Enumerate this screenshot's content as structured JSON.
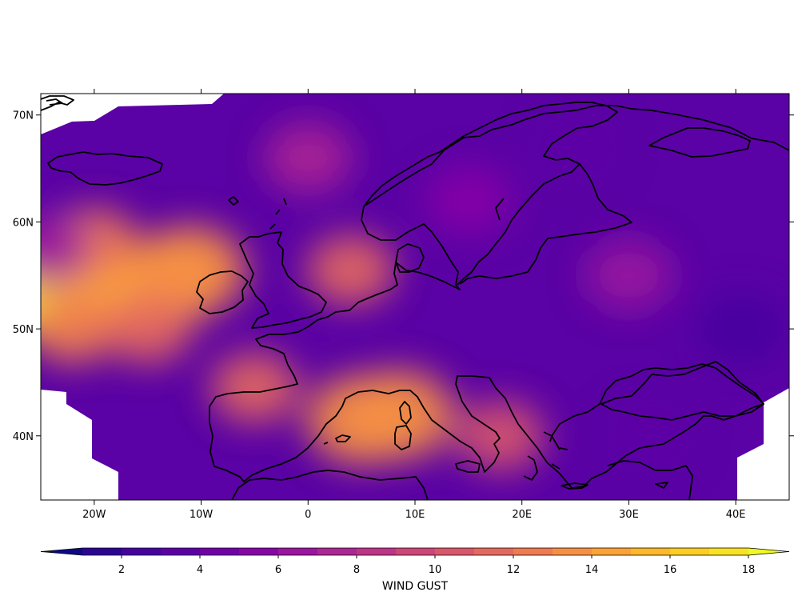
{
  "map": {
    "projection": "PlateCarree",
    "lon_range": [
      -25,
      45
    ],
    "lat_range": [
      34,
      72
    ],
    "x_ticks": [
      {
        "value": -20,
        "label": "20W"
      },
      {
        "value": -10,
        "label": "10W"
      },
      {
        "value": 0,
        "label": "0"
      },
      {
        "value": 10,
        "label": "10E"
      },
      {
        "value": 20,
        "label": "20E"
      },
      {
        "value": 30,
        "label": "30E"
      },
      {
        "value": 40,
        "label": "40E"
      }
    ],
    "y_ticks": [
      {
        "value": 40,
        "label": "40N"
      },
      {
        "value": 50,
        "label": "50N"
      },
      {
        "value": 60,
        "label": "60N"
      },
      {
        "value": 70,
        "label": "70N"
      }
    ],
    "colormap": "plasma",
    "field": "wind gust (filled contours)"
  },
  "colorbar": {
    "label": "WIND GUST",
    "levels": [
      1,
      2,
      3,
      4,
      5,
      6,
      7,
      8,
      9,
      10,
      11,
      12,
      13,
      14,
      15,
      16,
      17,
      18
    ],
    "extend": "both",
    "ticks": [
      {
        "value": 2,
        "label": "2"
      },
      {
        "value": 4,
        "label": "4"
      },
      {
        "value": 6,
        "label": "6"
      },
      {
        "value": 8,
        "label": "8"
      },
      {
        "value": 10,
        "label": "10"
      },
      {
        "value": 12,
        "label": "12"
      },
      {
        "value": 14,
        "label": "14"
      },
      {
        "value": 16,
        "label": "16"
      },
      {
        "value": 18,
        "label": "18"
      }
    ],
    "colors": [
      "#0d0887",
      "#2d0594",
      "#46039f",
      "#5c01a6",
      "#7201a8",
      "#8606a6",
      "#9a169f",
      "#ac2694",
      "#bc3587",
      "#cc4778",
      "#d8576b",
      "#e4695e",
      "#ee7b51",
      "#f68f44",
      "#fca338",
      "#feb82c",
      "#fccd25",
      "#f7e225",
      "#f0f921"
    ]
  },
  "hotspots": [
    {
      "lon": -24.5,
      "lat": 53.2,
      "value": 17.5
    },
    {
      "lon": -22,
      "lat": 53.5,
      "value": 16
    },
    {
      "lon": -18,
      "lat": 53.5,
      "value": 14.5
    },
    {
      "lon": -13,
      "lat": 54.5,
      "value": 14
    },
    {
      "lon": -11,
      "lat": 55.5,
      "value": 13.5
    },
    {
      "lon": -20,
      "lat": 58,
      "value": 12
    },
    {
      "lon": -22,
      "lat": 50,
      "value": 12
    },
    {
      "lon": -15,
      "lat": 50,
      "value": 11.5
    },
    {
      "lon": -24.5,
      "lat": 57.5,
      "value": 6
    },
    {
      "lon": 5,
      "lat": 41.5,
      "value": 13.5
    },
    {
      "lon": 8.5,
      "lat": 42,
      "value": 13
    },
    {
      "lon": 4,
      "lat": 55.5,
      "value": 11.5
    },
    {
      "lon": -5,
      "lat": 44.5,
      "value": 11
    },
    {
      "lon": 18,
      "lat": 40,
      "value": 10.5
    },
    {
      "lon": 0,
      "lat": 66,
      "value": 7.5
    },
    {
      "lon": 40.5,
      "lat": 50,
      "value": 2.5
    },
    {
      "lon": 25,
      "lat": 67,
      "value": 3.5
    },
    {
      "lon": 32,
      "lat": 40,
      "value": 3.5
    },
    {
      "lon": 15,
      "lat": 62,
      "value": 5
    },
    {
      "lon": 30,
      "lat": 55,
      "value": 6
    }
  ]
}
